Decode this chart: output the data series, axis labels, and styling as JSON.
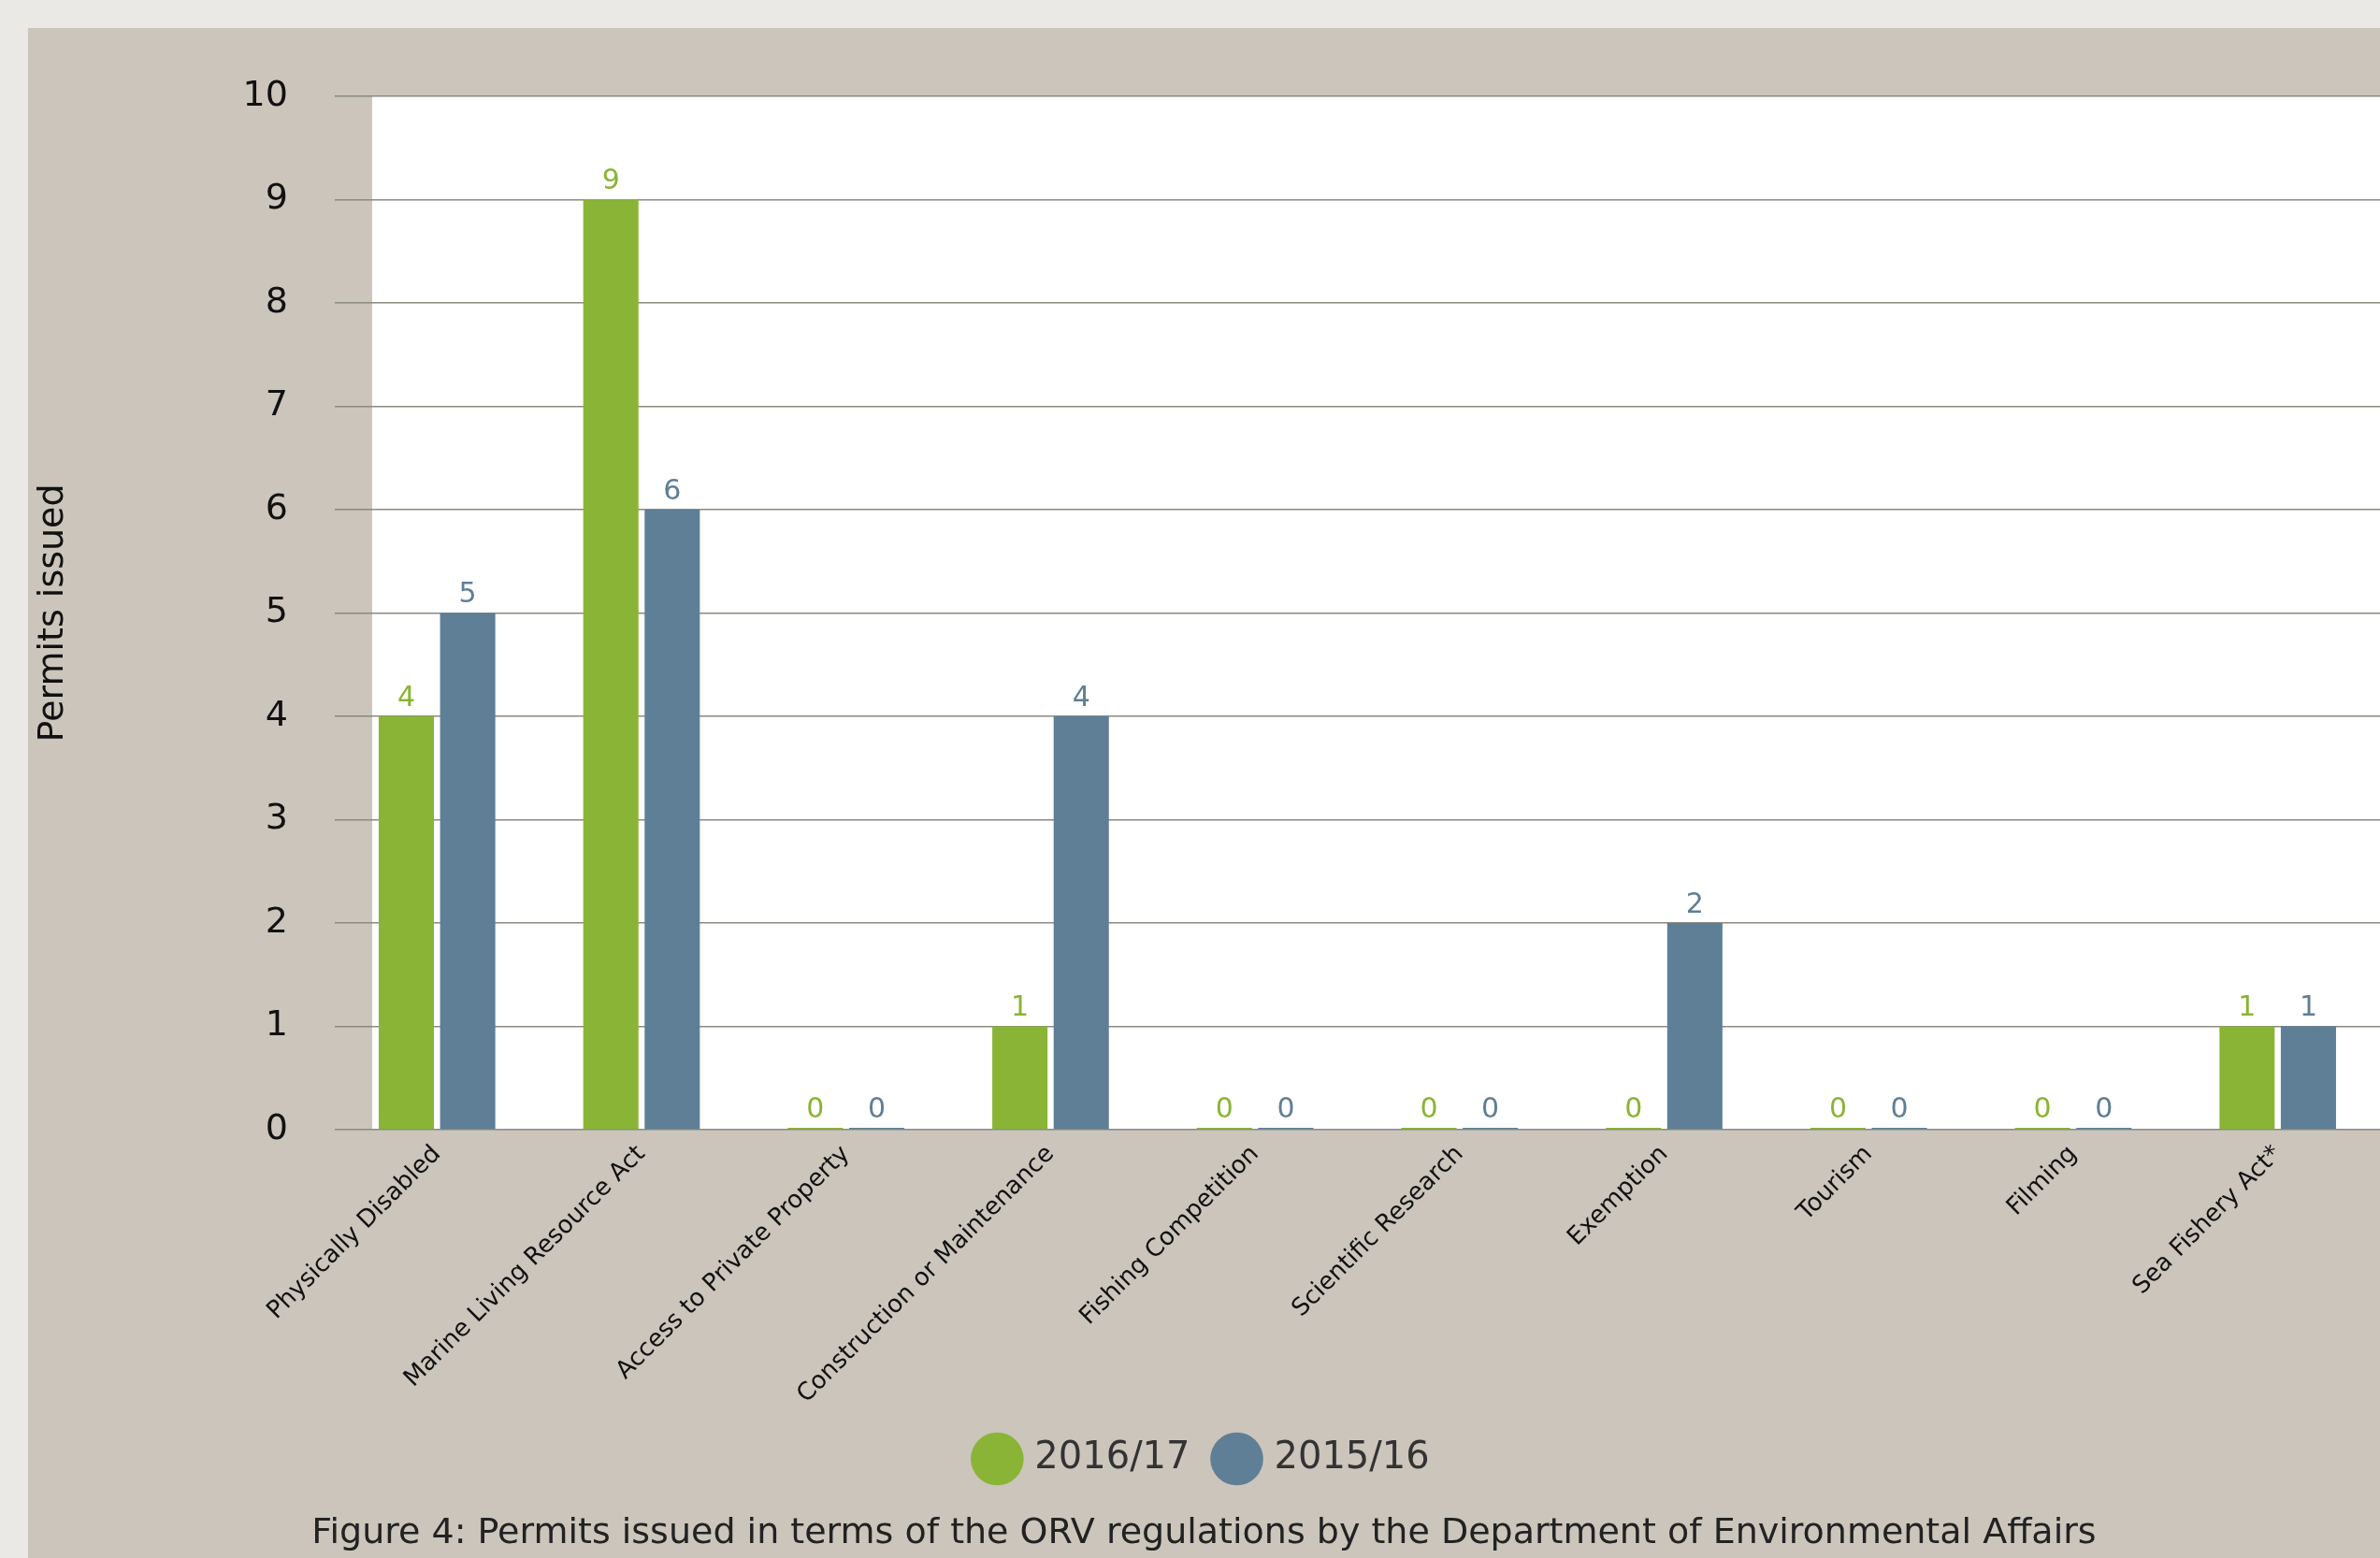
{
  "chart_data": {
    "type": "bar",
    "ylabel": "Permits issued",
    "categories": [
      "Physically Disabled",
      "Marine Living Resource Act",
      "Access to Private Property",
      "Construction or Maintenance",
      "Fishing Competition",
      "Scientific Research",
      "Exemption",
      "Tourism",
      "Filming",
      "Sea Fishery Act*"
    ],
    "series": [
      {
        "name": "2016/17",
        "color": "#8ab435",
        "values": [
          4,
          9,
          0,
          1,
          0,
          0,
          0,
          0,
          0,
          1
        ]
      },
      {
        "name": "2015/16",
        "color": "#5e7f96",
        "values": [
          5,
          6,
          0,
          4,
          0,
          0,
          2,
          0,
          0,
          1
        ]
      }
    ],
    "ylim": [
      0,
      10
    ],
    "yticks": [
      0,
      1,
      2,
      3,
      4,
      5,
      6,
      7,
      8,
      9,
      10
    ],
    "grid": "y",
    "legend": "bottom",
    "data_labels": true,
    "annotations": [
      "Figure 4: Permits issued in terms of the ORV regulations by the Department of Environmental Affairs"
    ]
  }
}
